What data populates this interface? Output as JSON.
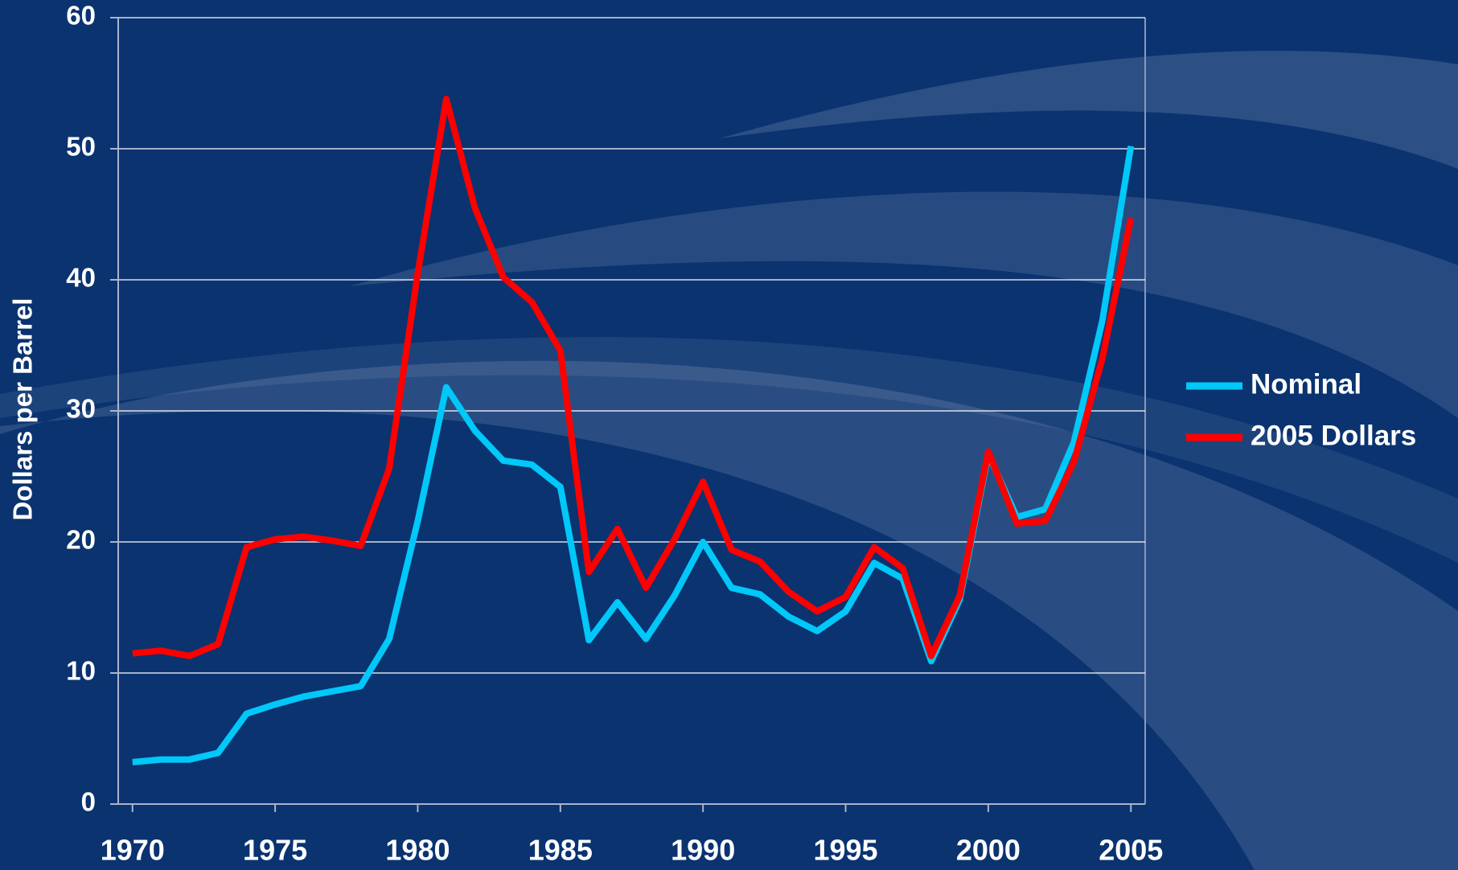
{
  "chart_data": {
    "type": "line",
    "y_label": "Dollars per Barrel",
    "x": [
      1970,
      1971,
      1972,
      1973,
      1974,
      1975,
      1976,
      1977,
      1978,
      1979,
      1980,
      1981,
      1982,
      1983,
      1984,
      1985,
      1986,
      1987,
      1988,
      1989,
      1990,
      1991,
      1992,
      1993,
      1994,
      1995,
      1996,
      1997,
      1998,
      1999,
      2000,
      2001,
      2002,
      2003,
      2004,
      2005
    ],
    "series": [
      {
        "name": "Nominal",
        "color": "#00c8f8",
        "values": [
          3.2,
          3.4,
          3.4,
          3.9,
          6.9,
          7.6,
          8.2,
          8.6,
          9.0,
          12.6,
          21.6,
          31.8,
          28.5,
          26.2,
          25.9,
          24.2,
          12.5,
          15.4,
          12.6,
          15.9,
          20.0,
          16.5,
          16.0,
          14.3,
          13.2,
          14.7,
          18.4,
          17.2,
          10.9,
          15.6,
          26.7,
          21.9,
          22.5,
          27.6,
          36.9,
          50.2
        ]
      },
      {
        "name": "2005 Dollars",
        "color": "#ff0000",
        "values": [
          11.5,
          11.7,
          11.3,
          12.2,
          19.6,
          20.2,
          20.4,
          20.1,
          19.7,
          25.6,
          40.5,
          53.8,
          45.5,
          40.2,
          38.3,
          34.6,
          17.7,
          21.0,
          16.5,
          20.2,
          24.6,
          19.4,
          18.5,
          16.2,
          14.7,
          15.8,
          19.6,
          18.0,
          11.3,
          15.9,
          26.9,
          21.4,
          21.6,
          26.1,
          34.0,
          44.7
        ]
      }
    ],
    "xlim": [
      1969.5,
      2005.5
    ],
    "xticks": [
      1970,
      1975,
      1980,
      1985,
      1990,
      1995,
      2000,
      2005
    ],
    "ylim": [
      0,
      60
    ],
    "yticks": [
      0,
      10,
      20,
      30,
      40,
      50,
      60
    ],
    "grid": true,
    "legend": "right"
  }
}
